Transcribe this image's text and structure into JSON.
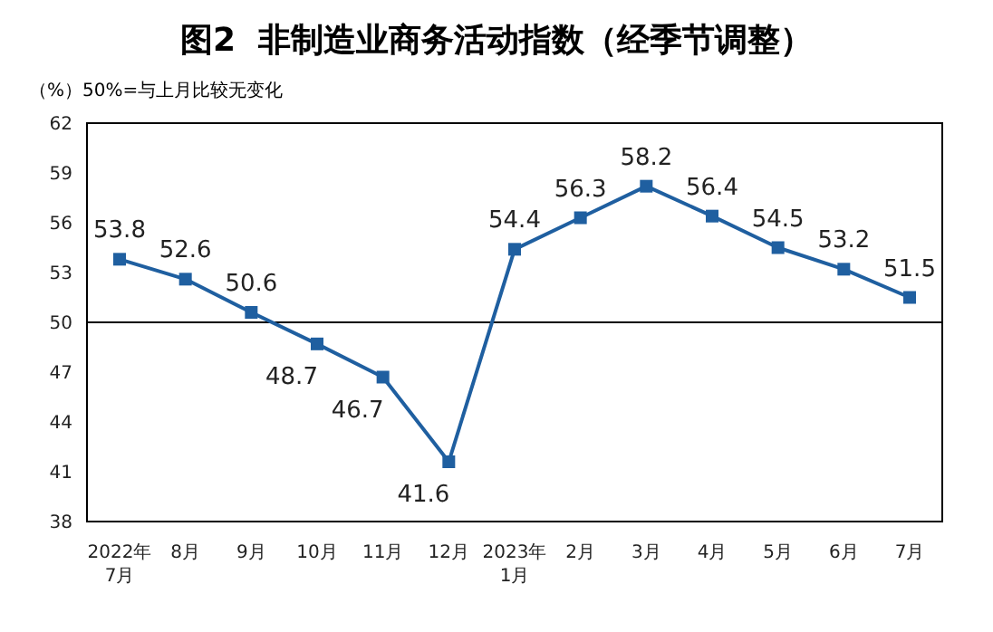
{
  "chart_data": {
    "type": "line",
    "title": "图2  非制造业商务活动指数（经季节调整）",
    "annotations": [
      "（%）50%=与上月比较无变化"
    ],
    "categories": [
      "2022年\n7月",
      "8月",
      "9月",
      "10月",
      "11月",
      "12月",
      "2023年\n1月",
      "2月",
      "3月",
      "4月",
      "5月",
      "6月",
      "7月"
    ],
    "series": [
      {
        "color": "#1f5fa0",
        "values": [
          53.8,
          52.6,
          50.6,
          48.7,
          46.7,
          41.6,
          54.4,
          56.3,
          58.2,
          56.4,
          54.5,
          53.2,
          51.5
        ]
      }
    ],
    "ylim": [
      38,
      62
    ],
    "yticks": [
      38,
      41,
      44,
      47,
      50,
      53,
      56,
      59,
      62
    ],
    "ref_lines": [
      {
        "axis": "y",
        "value": 50,
        "color": "#000000"
      }
    ],
    "data_labels": true,
    "marker": "square",
    "grid": false,
    "legend": false
  }
}
